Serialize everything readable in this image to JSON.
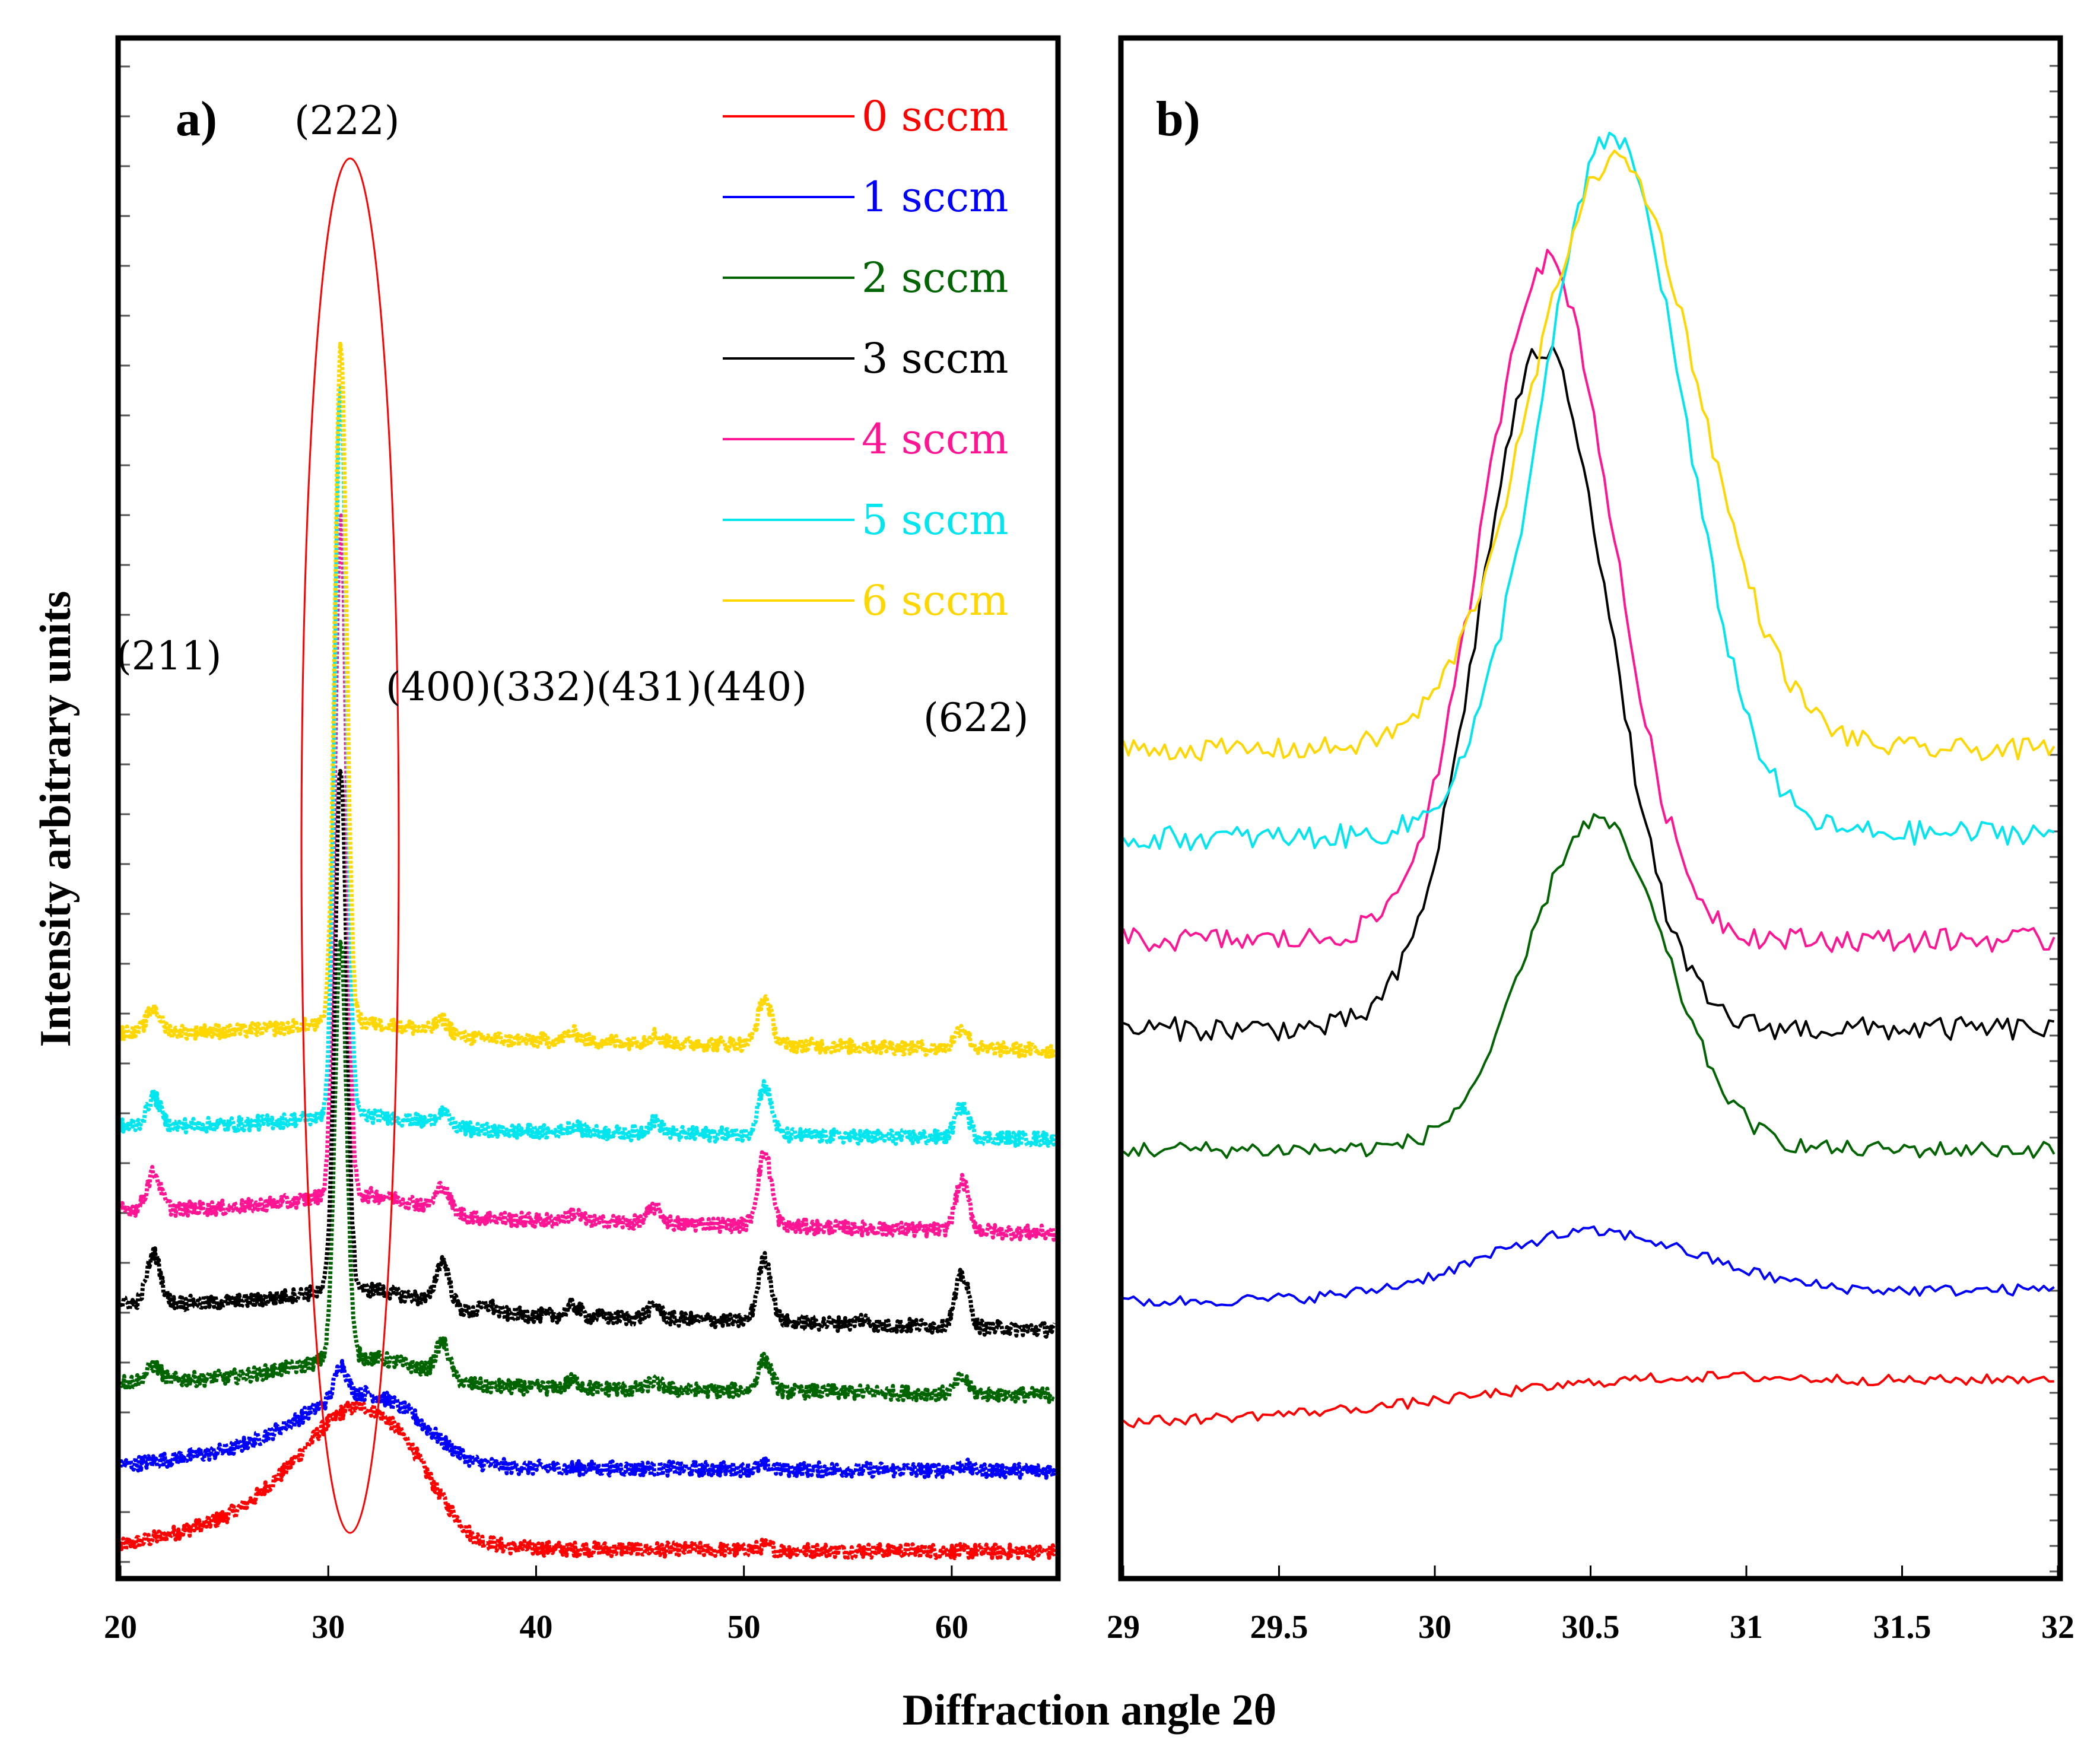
{
  "chart_data": [
    {
      "type": "line",
      "panel_label": "a)",
      "xlim": [
        20,
        65
      ],
      "x_ticks": [
        20,
        30,
        40,
        50,
        60
      ],
      "ylabel": "Intensity arbitrary units",
      "y_ticks_labeled": false,
      "annotation_ellipse": {
        "center_x": 31,
        "note": "red ellipse around (222) peak"
      },
      "miller_indices": [
        {
          "label": "(211)",
          "x": 21.6
        },
        {
          "label": "(222)",
          "x": 30.6
        },
        {
          "label": "(400)(332)(431)(440)",
          "x": 35.4
        },
        {
          "label": "(622)",
          "x": 60.5
        }
      ],
      "peak_positions": [
        21.6,
        30.6,
        35.5,
        37.7,
        41.8,
        45.7,
        51.0,
        55.7,
        60.5
      ],
      "series": [
        {
          "name": "0 sccm",
          "color": "#ff0000",
          "offset": 0.0,
          "peak_heights": [
            0.0,
            0.0,
            0.0,
            0.0,
            0.0,
            0.0,
            0.15,
            0.0,
            0.0
          ],
          "amorphous_hump": 4.0,
          "baseline_slope": -0.2
        },
        {
          "name": "1 sccm",
          "color": "#0000ff",
          "offset": 3.1,
          "peak_heights": [
            0.0,
            1.2,
            0.0,
            0.0,
            0.0,
            0.0,
            0.15,
            0.0,
            0.2
          ],
          "amorphous_hump": 2.1,
          "baseline_slope": -0.2
        },
        {
          "name": "2 sccm",
          "color": "#006400",
          "offset": 6.3,
          "peak_heights": [
            0.6,
            16.0,
            1.3,
            0.0,
            0.3,
            0.3,
            1.2,
            0.0,
            0.6
          ],
          "amorphous_hump": 0.8,
          "baseline_slope": -0.5
        },
        {
          "name": "3 sccm",
          "color": "#000000",
          "offset": 9.3,
          "peak_heights": [
            1.9,
            20.0,
            1.7,
            0.3,
            0.4,
            0.5,
            2.4,
            0.2,
            2.0
          ],
          "amorphous_hump": 0.6,
          "baseline_slope": -1.0
        },
        {
          "name": "4 sccm",
          "color": "#ff1493",
          "offset": 12.9,
          "peak_heights": [
            1.4,
            26.0,
            0.9,
            0.0,
            0.3,
            0.6,
            2.8,
            0.0,
            1.9
          ],
          "amorphous_hump": 0.6,
          "baseline_slope": -0.9
        },
        {
          "name": "5 sccm",
          "color": "#00e5ee",
          "offset": 16.1,
          "peak_heights": [
            1.1,
            28.0,
            0.5,
            0.0,
            0.3,
            0.5,
            1.9,
            0.0,
            1.2
          ],
          "amorphous_hump": 0.4,
          "baseline_slope": -0.5
        },
        {
          "name": "6 sccm",
          "color": "#ffd700",
          "offset": 19.7,
          "peak_heights": [
            0.9,
            26.0,
            0.5,
            0.0,
            0.3,
            0.3,
            1.8,
            0.0,
            0.8
          ],
          "amorphous_hump": 0.4,
          "baseline_slope": -0.7
        }
      ],
      "legend": {
        "placement": "top-right",
        "entries": [
          {
            "label": "0 sccm",
            "color": "#ff0000"
          },
          {
            "label": "1 sccm",
            "color": "#0000ff"
          },
          {
            "label": "2 sccm",
            "color": "#006400"
          },
          {
            "label": "3 sccm",
            "color": "#000000"
          },
          {
            "label": "4 sccm",
            "color": "#ff1493"
          },
          {
            "label": "5 sccm",
            "color": "#00e5ee"
          },
          {
            "label": "6 sccm",
            "color": "#ffd700"
          }
        ]
      }
    },
    {
      "type": "line",
      "panel_label": "b)",
      "xlim": [
        29,
        32
      ],
      "x_ticks": [
        29,
        29.5,
        30,
        30.5,
        31,
        31.5,
        32
      ],
      "x_tick_labels": [
        "29",
        "29.5",
        "30",
        "30.5",
        "31",
        "31.5",
        "32"
      ],
      "y_ticks_labeled": false,
      "series": [
        {
          "name": "0 sccm",
          "color": "#ff0000",
          "baseline_start": 1.2,
          "baseline_end": 1.55,
          "peak_center": 30.7,
          "peak_height": 0.15,
          "peak_width": 0.5
        },
        {
          "name": "1 sccm",
          "color": "#0000ff",
          "baseline_start": 2.15,
          "baseline_end": 2.25,
          "peak_center": 30.5,
          "peak_height": 0.5,
          "peak_width": 0.35
        },
        {
          "name": "2 sccm",
          "color": "#006400",
          "baseline_start": 3.35,
          "baseline_end": 3.35,
          "peak_center": 30.52,
          "peak_height": 2.6,
          "peak_width": 0.22
        },
        {
          "name": "3 sccm",
          "color": "#000000",
          "baseline_start": 4.3,
          "baseline_end": 4.3,
          "peak_center": 30.35,
          "peak_height": 5.35,
          "peak_width": 0.21
        },
        {
          "name": "4 sccm",
          "color": "#ff1493",
          "baseline_start": 5.0,
          "baseline_end": 5.0,
          "peak_center": 30.36,
          "peak_height": 5.35,
          "peak_width": 0.21
        },
        {
          "name": "5 sccm",
          "color": "#00e5ee",
          "baseline_start": 5.8,
          "baseline_end": 5.85,
          "peak_center": 30.57,
          "peak_height": 5.5,
          "peak_width": 0.23
        },
        {
          "name": "6 sccm",
          "color": "#ffd700",
          "baseline_start": 6.5,
          "baseline_end": 6.5,
          "peak_center": 30.58,
          "peak_height": 4.65,
          "peak_width": 0.27
        }
      ]
    }
  ],
  "xlabel": "Diffraction angle 2θ"
}
